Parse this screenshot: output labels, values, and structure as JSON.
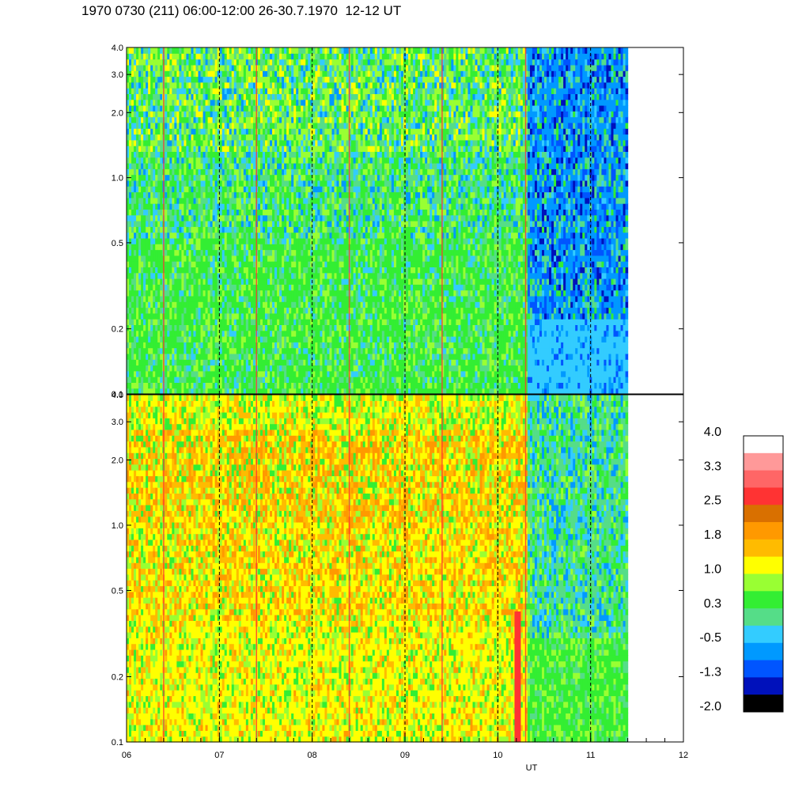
{
  "title": "1970 0730 (211) 06:00-12:00 26-30.7.1970  12-12 UT",
  "chart_data": [
    {
      "type": "heatmap",
      "panel": "top",
      "x_range": [
        6,
        12
      ],
      "data_end_x": 11.4,
      "y_scale": "log",
      "y_range": [
        0.1,
        4.0
      ],
      "y_ticks": [
        "0.1",
        "0.2",
        "0.5",
        "1.0",
        "2.0",
        "3.0",
        "4.0"
      ],
      "x_gridlines": [
        7,
        8,
        9,
        10,
        11
      ],
      "grid": "dashed vertical",
      "dominant_values": "mostly 0.3 to 1.0; -0.5 to -2.0 after 10.3 UT"
    },
    {
      "type": "heatmap",
      "panel": "bottom",
      "x_range": [
        6,
        12
      ],
      "data_end_x": 11.4,
      "y_scale": "log",
      "y_range": [
        0.1,
        4.0
      ],
      "y_ticks": [
        "0.1",
        "0.2",
        "0.5",
        "1.0",
        "2.0",
        "3.0",
        "4.0"
      ],
      "x_ticks": [
        "06",
        "07",
        "08",
        "09",
        "10",
        "11",
        "12"
      ],
      "x_gridlines": [
        7,
        8,
        9,
        10,
        11
      ],
      "xlabel": "UT",
      "grid": "dashed vertical",
      "dominant_values": "mostly 1.0 to 1.8; 0.3 to -0.5 after 10.3 UT"
    }
  ],
  "colorbar": {
    "labels": [
      "4.0",
      "3.3",
      "2.5",
      "1.8",
      "1.0",
      "0.3",
      "-0.5",
      "-1.3",
      "-2.0"
    ],
    "colors_top_to_bottom": [
      "#ffffff",
      "#ff9999",
      "#ff6666",
      "#ff3333",
      "#d97000",
      "#ff9900",
      "#ffbb00",
      "#ffff00",
      "#99ff33",
      "#33ee33",
      "#55dd88",
      "#33ccff",
      "#0099ff",
      "#0055ff",
      "#0011bb",
      "#000000"
    ]
  }
}
